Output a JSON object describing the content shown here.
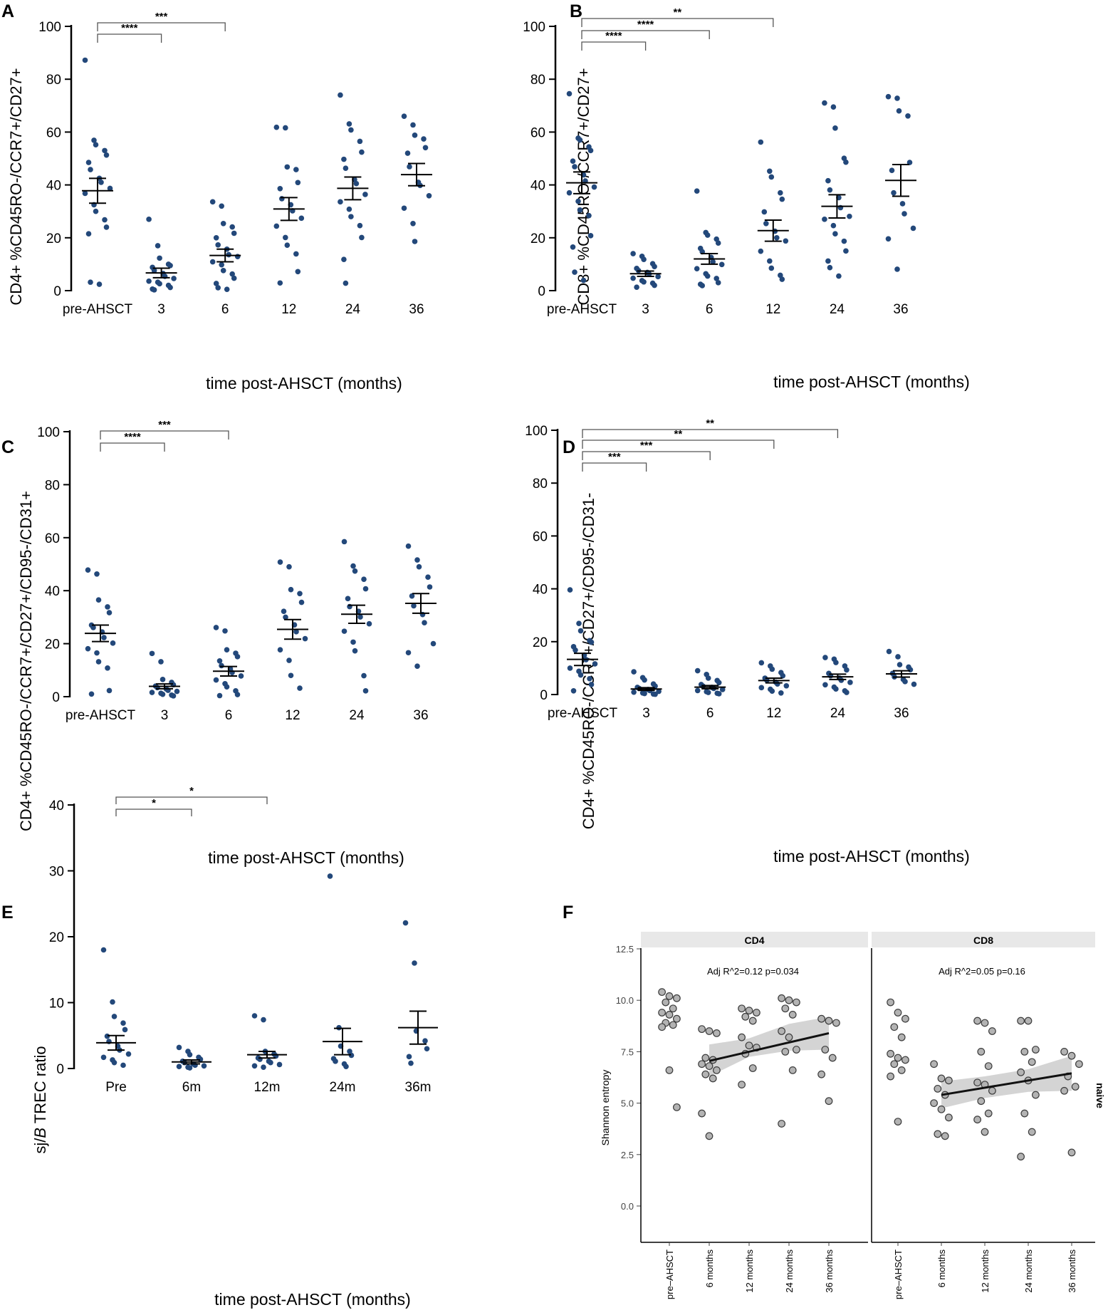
{
  "colors": {
    "dot": "#23487a",
    "grey_dot": "#b3b3b3",
    "band": "#cfcfcf",
    "strip": "#e8e8e8"
  },
  "chart_data": [
    {
      "panel": "A",
      "type": "scatter",
      "xlabel": "time post-AHSCT (months)",
      "ylabel": "CD4+ %CD45RO-/CCR7+/CD27+",
      "ylim": [
        0,
        100
      ],
      "yticks": [
        0,
        20,
        40,
        60,
        80,
        100
      ],
      "categories": [
        "pre-AHSCT",
        "3",
        "6",
        "12",
        "24",
        "36"
      ],
      "groups": [
        {
          "mean": 37.8,
          "sem": 4.7,
          "points": [
            87.2,
            56.9,
            55.2,
            53.0,
            51.3,
            48.5,
            45.8,
            42.5,
            41.0,
            38.7,
            36.8,
            32.5,
            30.0,
            26.8,
            24.0,
            21.5,
            3.2,
            2.4
          ]
        },
        {
          "mean": 6.7,
          "sem": 1.8,
          "points": [
            27.0,
            17.0,
            12.3,
            10.0,
            9.5,
            8.8,
            7.6,
            6.5,
            5.4,
            4.6,
            3.6,
            3.2,
            2.6,
            2.0,
            1.2,
            0.6,
            0.3
          ]
        },
        {
          "mean": 13.3,
          "sem": 2.4,
          "points": [
            33.6,
            32.0,
            25.4,
            24.1,
            21.7,
            20.0,
            17.3,
            15.7,
            13.6,
            12.9,
            10.9,
            9.8,
            7.6,
            6.3,
            4.7,
            2.7,
            1.1,
            0.5
          ]
        },
        {
          "mean": 30.9,
          "sem": 4.3,
          "points": [
            61.8,
            61.6,
            46.8,
            45.8,
            40.9,
            38.6,
            34.8,
            32.5,
            30.2,
            27.4,
            24.4,
            20.1,
            17.2,
            13.9,
            7.2,
            2.9
          ]
        },
        {
          "mean": 38.7,
          "sem": 4.3,
          "points": [
            74.0,
            63.1,
            60.8,
            56.5,
            52.4,
            49.7,
            46.3,
            42.0,
            40.5,
            36.4,
            33.6,
            30.8,
            28.0,
            24.6,
            20.1,
            11.8,
            2.8
          ]
        },
        {
          "mean": 43.9,
          "sem": 4.2,
          "points": [
            66.0,
            62.7,
            58.8,
            57.4,
            54.1,
            52.0,
            46.9,
            41.0,
            39.8,
            35.9,
            31.2,
            25.4,
            18.6
          ]
        }
      ],
      "significance": [
        {
          "from": "pre-AHSCT",
          "to": "3",
          "label": "****"
        },
        {
          "from": "pre-AHSCT",
          "to": "6",
          "label": "***"
        }
      ]
    },
    {
      "panel": "B",
      "type": "scatter",
      "xlabel": "time post-AHSCT (months)",
      "ylabel": "CD8+ %CD45RO-/CCR7+/CD27+",
      "ylim": [
        0,
        100
      ],
      "yticks": [
        0,
        20,
        40,
        60,
        80,
        100
      ],
      "categories": [
        "pre-AHSCT",
        "3",
        "6",
        "12",
        "24",
        "36"
      ],
      "groups": [
        {
          "mean": 40.8,
          "sem": 4.1,
          "points": [
            74.5,
            57.7,
            57.0,
            54.4,
            53.0,
            49.0,
            46.9,
            43.8,
            41.5,
            39.2,
            37.0,
            33.8,
            30.5,
            28.4,
            20.8,
            16.5,
            7.0,
            3.9
          ]
        },
        {
          "mean": 6.4,
          "sem": 1.0,
          "points": [
            14.0,
            13.0,
            11.8,
            10.2,
            9.1,
            8.4,
            7.6,
            6.9,
            6.3,
            5.3,
            4.7,
            3.8,
            3.3,
            2.8,
            2.0,
            1.3
          ]
        },
        {
          "mean": 12.0,
          "sem": 2.0,
          "points": [
            37.7,
            22.0,
            21.0,
            19.5,
            18.0,
            16.0,
            14.7,
            12.6,
            10.9,
            9.9,
            8.3,
            6.4,
            5.5,
            4.6,
            3.0,
            2.4,
            1.9
          ]
        },
        {
          "mean": 22.7,
          "sem": 4.0,
          "points": [
            56.2,
            45.2,
            43.0,
            37.0,
            34.6,
            29.8,
            25.4,
            22.5,
            20.0,
            18.8,
            14.9,
            11.2,
            8.5,
            5.8,
            4.3
          ]
        },
        {
          "mean": 31.9,
          "sem": 4.4,
          "points": [
            71.0,
            69.5,
            61.5,
            50.1,
            48.6,
            41.6,
            38.1,
            35.2,
            31.4,
            28.1,
            27.0,
            24.6,
            21.5,
            18.7,
            15.0,
            11.2,
            8.7,
            5.5
          ]
        },
        {
          "mean": 41.7,
          "sem": 6.0,
          "points": [
            73.4,
            72.8,
            68.0,
            66.1,
            48.5,
            45.5,
            37.0,
            32.9,
            29.1,
            23.6,
            19.6,
            8.1
          ]
        }
      ],
      "significance": [
        {
          "from": "pre-AHSCT",
          "to": "3",
          "label": "****"
        },
        {
          "from": "pre-AHSCT",
          "to": "6",
          "label": "****"
        },
        {
          "from": "pre-AHSCT",
          "to": "12",
          "label": "**"
        }
      ]
    },
    {
      "panel": "C",
      "type": "scatter",
      "xlabel": "time post-AHSCT (months)",
      "ylabel": "CD4+ %CD45RO-/CCR7+/CD27+/CD95-/CD31+",
      "ylim": [
        0,
        100
      ],
      "yticks": [
        0,
        20,
        40,
        60,
        80,
        100
      ],
      "categories": [
        "pre-AHSCT",
        "3",
        "6",
        "12",
        "24",
        "36"
      ],
      "groups": [
        {
          "mean": 23.9,
          "sem": 3.1,
          "points": [
            47.8,
            46.3,
            36.5,
            33.9,
            31.7,
            27.0,
            26.1,
            24.4,
            22.3,
            20.2,
            18.1,
            16.5,
            13.2,
            10.8,
            2.3,
            1.0
          ]
        },
        {
          "mean": 3.9,
          "sem": 0.9,
          "points": [
            16.3,
            13.2,
            6.5,
            5.4,
            4.5,
            4.0,
            3.4,
            2.9,
            2.4,
            2.0,
            1.6,
            1.3,
            0.9,
            0.6,
            0.3
          ]
        },
        {
          "mean": 9.6,
          "sem": 1.8,
          "points": [
            26.1,
            24.8,
            17.7,
            16.4,
            15.1,
            13.5,
            11.7,
            10.5,
            9.1,
            7.8,
            6.3,
            4.9,
            3.7,
            2.2,
            0.8,
            0.4
          ]
        },
        {
          "mean": 25.4,
          "sem": 3.7,
          "points": [
            50.8,
            49.0,
            40.4,
            38.9,
            35.6,
            32.2,
            30.0,
            27.1,
            24.5,
            21.9,
            17.7,
            13.7,
            8.0,
            3.2
          ]
        },
        {
          "mean": 31.1,
          "sem": 3.4,
          "points": [
            58.5,
            49.3,
            47.4,
            44.3,
            40.7,
            37.0,
            34.0,
            32.2,
            30.1,
            27.5,
            24.7,
            20.6,
            17.3,
            7.9,
            2.2
          ]
        },
        {
          "mean": 35.2,
          "sem": 3.7,
          "points": [
            56.8,
            51.6,
            49.0,
            45.1,
            41.4,
            38.0,
            34.3,
            31.0,
            27.9,
            20.0,
            16.6,
            11.5
          ]
        }
      ],
      "significance": [
        {
          "from": "pre-AHSCT",
          "to": "3",
          "label": "****"
        },
        {
          "from": "pre-AHSCT",
          "to": "6",
          "label": "***"
        }
      ]
    },
    {
      "panel": "D",
      "type": "scatter",
      "xlabel": "time post-AHSCT (months)",
      "ylabel": "CD4+ %CD45RO-/CCR7+/CD27+/CD95-/CD31-",
      "ylim": [
        0,
        100
      ],
      "yticks": [
        0,
        20,
        40,
        60,
        80,
        100
      ],
      "categories": [
        "pre-AHSCT",
        "3",
        "6",
        "12",
        "24",
        "36"
      ],
      "groups": [
        {
          "mean": 13.3,
          "sem": 2.3,
          "points": [
            39.6,
            26.9,
            24.1,
            20.4,
            19.8,
            18.1,
            16.8,
            14.9,
            13.2,
            11.6,
            10.0,
            8.8,
            7.4,
            6.0,
            3.8,
            1.4
          ]
        },
        {
          "mean": 2.1,
          "sem": 0.5,
          "points": [
            8.6,
            6.4,
            5.5,
            4.0,
            3.2,
            2.7,
            2.3,
            1.9,
            1.5,
            1.2,
            0.9,
            0.6,
            0.4,
            0.2,
            0.1
          ]
        },
        {
          "mean": 2.8,
          "sem": 0.6,
          "points": [
            9.0,
            7.6,
            6.2,
            5.3,
            4.5,
            3.8,
            3.2,
            2.7,
            2.3,
            1.9,
            1.5,
            1.1,
            0.8,
            0.5,
            0.3
          ]
        },
        {
          "mean": 5.3,
          "sem": 0.9,
          "points": [
            12.0,
            10.8,
            9.6,
            8.3,
            7.1,
            6.2,
            5.4,
            4.7,
            4.0,
            3.3,
            2.6,
            2.0,
            1.3,
            0.6
          ]
        },
        {
          "mean": 6.7,
          "sem": 1.0,
          "points": [
            14.0,
            13.4,
            12.1,
            10.8,
            9.3,
            8.0,
            7.1,
            6.2,
            5.4,
            4.6,
            3.7,
            2.8,
            2.1,
            1.4,
            0.8
          ]
        },
        {
          "mean": 7.8,
          "sem": 1.2,
          "points": [
            16.3,
            14.3,
            11.3,
            10.4,
            9.4,
            8.0,
            6.7,
            5.7,
            4.9,
            3.9
          ]
        }
      ],
      "significance": [
        {
          "from": "pre-AHSCT",
          "to": "3",
          "label": "***"
        },
        {
          "from": "pre-AHSCT",
          "to": "6",
          "label": "***"
        },
        {
          "from": "pre-AHSCT",
          "to": "12",
          "label": "**"
        },
        {
          "from": "pre-AHSCT",
          "to": "24",
          "label": "**"
        }
      ]
    },
    {
      "panel": "E",
      "type": "scatter",
      "xlabel": "time post-AHSCT (months)",
      "ylabel_pre": "sj/",
      "ylabel_italic": "B",
      "ylabel_post": " TREC ratio",
      "ylim": [
        0,
        40
      ],
      "yticks": [
        0,
        10,
        20,
        30,
        40
      ],
      "categories": [
        "Pre",
        "6m",
        "12m",
        "24m",
        "36m"
      ],
      "groups": [
        {
          "mean": 3.9,
          "sem": 1.1,
          "points": [
            18.0,
            10.1,
            7.9,
            6.9,
            5.9,
            4.9,
            4.1,
            3.4,
            2.8,
            2.2,
            1.7,
            1.3,
            0.9,
            0.5
          ]
        },
        {
          "mean": 1.0,
          "sem": 0.3,
          "points": [
            3.2,
            2.6,
            2.1,
            1.7,
            1.4,
            1.1,
            0.9,
            0.7,
            0.5,
            0.4,
            0.3,
            0.2,
            0.1
          ]
        },
        {
          "mean": 2.1,
          "sem": 0.5,
          "points": [
            8.0,
            7.4,
            2.6,
            2.2,
            1.9,
            1.6,
            1.4,
            1.1,
            0.9,
            0.6,
            0.4,
            0.2
          ]
        },
        {
          "mean": 4.1,
          "sem": 2.0,
          "points": [
            29.2,
            6.2,
            3.4,
            2.6,
            2.0,
            1.5,
            1.1,
            0.7,
            0.3
          ]
        },
        {
          "mean": 6.2,
          "sem": 2.5,
          "points": [
            22.1,
            16.0,
            5.7,
            4.2,
            3.0,
            1.8,
            0.8
          ]
        }
      ],
      "significance": [
        {
          "from": "Pre",
          "to": "6m",
          "label": "*"
        },
        {
          "from": "Pre",
          "to": "12m",
          "label": "*"
        }
      ]
    },
    {
      "panel": "F",
      "type": "scatter",
      "ylabel": "Shannon entropy",
      "ylim": [
        0,
        12.5
      ],
      "yticks": [
        "0.0",
        "2.5",
        "5.0",
        "7.5",
        "10.0",
        "12.5"
      ],
      "categories": [
        "pre–AHSCT",
        "6 months",
        "12 months",
        "24 months",
        "36 months"
      ],
      "side_label": "naive",
      "facets": [
        {
          "title": "CD4",
          "annotation": "Adj R^2=0.12 p=0.034",
          "fit": {
            "x1": 1,
            "y1": 7.05,
            "x2": 4,
            "y2": 8.4,
            "band_low": [
              6.3,
              7.25,
              7.55,
              7.6
            ],
            "band_high": [
              7.85,
              8.15,
              8.85,
              9.2
            ]
          },
          "groups": [
            [
              10.4,
              10.2,
              10.1,
              9.9,
              9.6,
              9.4,
              9.3,
              9.1,
              8.9,
              8.8,
              8.7,
              6.6,
              4.8
            ],
            [
              8.6,
              8.5,
              8.4,
              7.2,
              7.1,
              6.9,
              6.8,
              6.6,
              6.4,
              6.2,
              4.5,
              3.4
            ],
            [
              9.6,
              9.5,
              9.4,
              9.2,
              9.0,
              8.2,
              7.8,
              7.7,
              7.4,
              6.7,
              5.9
            ],
            [
              10.1,
              10.0,
              9.9,
              9.6,
              9.3,
              8.5,
              8.2,
              7.6,
              7.5,
              6.6,
              4.0
            ],
            [
              9.1,
              9.0,
              8.9,
              7.6,
              7.2,
              6.4,
              5.1
            ]
          ]
        },
        {
          "title": "CD8",
          "annotation": "Adj R^2=0.05 p=0.16",
          "fit": {
            "x1": 1,
            "y1": 5.4,
            "x2": 4,
            "y2": 6.45,
            "band_low": [
              4.75,
              5.25,
              5.55,
              5.6
            ],
            "band_high": [
              6.05,
              6.3,
              6.65,
              7.3
            ]
          },
          "groups": [
            [
              9.9,
              9.4,
              9.1,
              8.7,
              8.2,
              7.4,
              7.2,
              7.1,
              6.9,
              6.6,
              6.3,
              4.1
            ],
            [
              6.9,
              6.2,
              6.1,
              5.7,
              5.4,
              5.0,
              4.7,
              4.3,
              3.5,
              3.4
            ],
            [
              9.0,
              8.9,
              8.5,
              7.5,
              6.8,
              6.0,
              5.9,
              5.6,
              5.1,
              4.5,
              4.2,
              3.6
            ],
            [
              9.0,
              9.0,
              7.6,
              7.5,
              7.0,
              6.5,
              6.1,
              5.4,
              4.5,
              3.6,
              2.4
            ],
            [
              7.5,
              7.3,
              6.9,
              6.3,
              5.8,
              5.6,
              2.6
            ]
          ]
        }
      ]
    }
  ]
}
